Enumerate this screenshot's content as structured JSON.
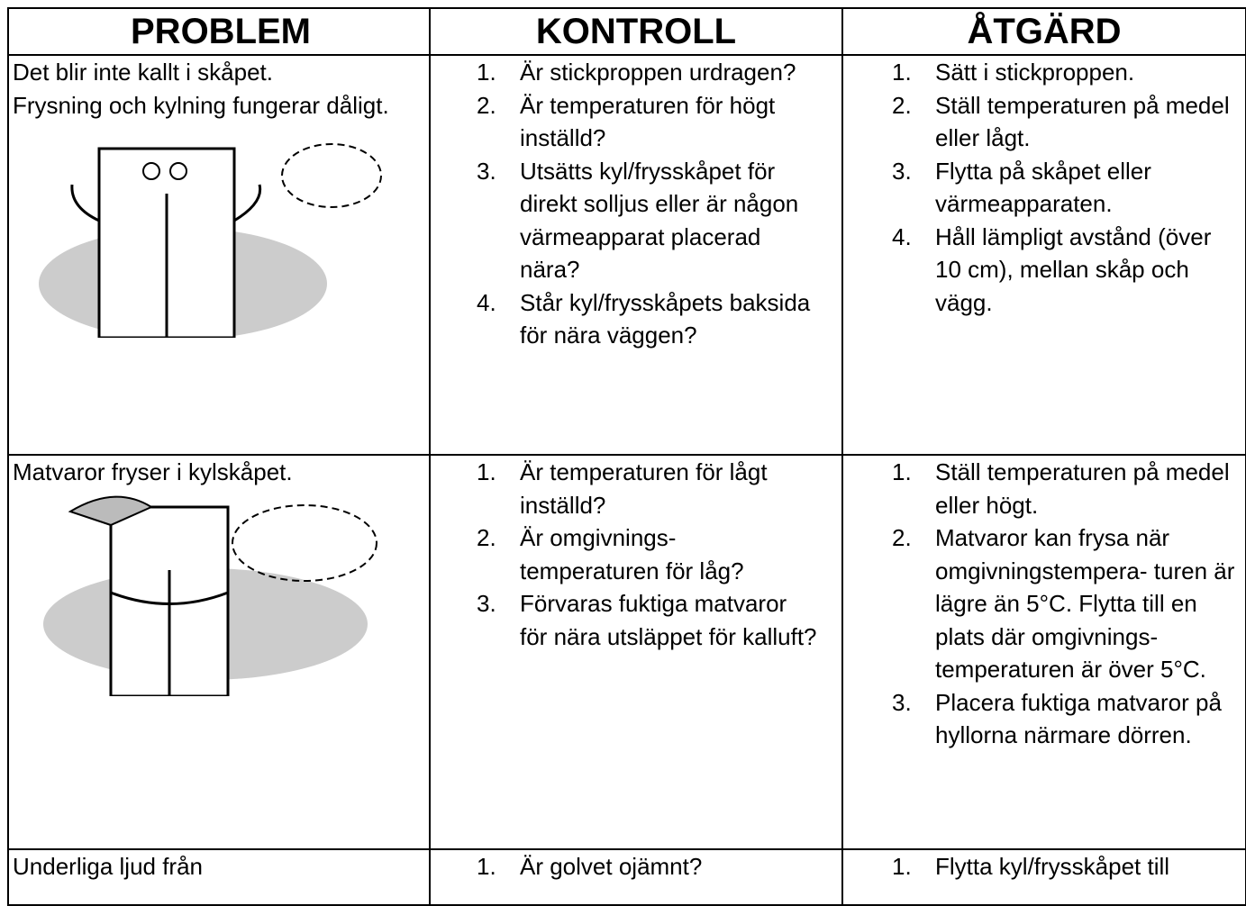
{
  "table": {
    "header": [
      "PROBLEM",
      "KONTROLL",
      "ÅTGÄRD"
    ],
    "rows": [
      {
        "problem": [
          "Det blir inte kallt i skåpet.",
          "Frysning och kylning fungerar dåligt."
        ],
        "checks": [
          {
            "number": "1.",
            "text": "Är stickproppen urdragen?"
          },
          {
            "number": "2.",
            "text": "Är temperaturen för högt inställd?"
          },
          {
            "number": "3.",
            "text": "Utsätts kyl/frysskåpet för direkt solljus eller är någon värmeapparat placerad nära?"
          },
          {
            "number": "4.",
            "text": "Står kyl/frysskåpets baksida för nära väggen?"
          }
        ],
        "actions": [
          {
            "number": "1.",
            "text": "Sätt i stickproppen."
          },
          {
            "number": "2.",
            "text": "Ställ temperaturen på medel eller lågt."
          },
          {
            "number": "3.",
            "text": "Flytta på skåpet eller värmeapparaten."
          },
          {
            "number": "4.",
            "text": "Håll lämpligt avstånd (över 10 cm), mellan skåp och vägg."
          }
        ]
      },
      {
        "problem": [
          "Matvaror fryser i kylskåpet."
        ],
        "checks": [
          {
            "number": "1.",
            "text": "Är temperaturen för lågt inställd?"
          },
          {
            "number": "2.",
            "text": "Är omgivnings- temperaturen för låg?"
          },
          {
            "number": "3.",
            "text": "Förvaras fuktiga matvaror för nära utsläppet för kalluft?"
          }
        ],
        "actions": [
          {
            "number": "1.",
            "text": "Ställ temperaturen på medel eller högt."
          },
          {
            "number": "2.",
            "text": "Matvaror kan frysa när omgivningstempera- turen är lägre än 5°C. Flytta till en plats där omgivnings- temperaturen är över 5°C."
          },
          {
            "number": "3.",
            "text": "Placera fuktiga matvaror på hyllorna närmare dörren."
          }
        ]
      },
      {
        "problem": [
          "Underliga ljud från"
        ],
        "checks": [
          {
            "number": "1.",
            "text": "Är golvet ojämnt?"
          }
        ],
        "actions": [
          {
            "number": "1.",
            "text": "Flytta kyl/frysskåpet till"
          }
        ]
      }
    ]
  }
}
